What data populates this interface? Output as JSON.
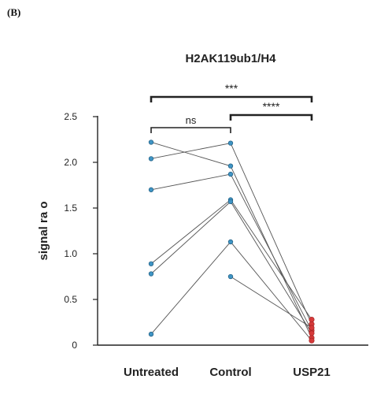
{
  "panel_label": "(B)",
  "chart_data": {
    "type": "scatter",
    "title": "H2AK119ub1/H4",
    "xlabel": "",
    "ylabel": "signal ra  o",
    "categories": [
      "Untreated",
      "Control",
      "USP21"
    ],
    "ylim": [
      0,
      2.5
    ],
    "yticks": [
      0,
      0.5,
      1.0,
      1.5,
      2.0,
      2.5
    ],
    "ytick_labels": [
      "0",
      "0.5",
      "1.0",
      "1.5",
      "2.0",
      "2.5"
    ],
    "grid": false,
    "series": [
      {
        "values": [
          2.22,
          1.96,
          0.08
        ]
      },
      {
        "values": [
          2.04,
          2.21,
          0.23
        ]
      },
      {
        "values": [
          1.7,
          1.87,
          0.16
        ]
      },
      {
        "values": [
          0.89,
          1.59,
          0.28
        ]
      },
      {
        "values": [
          0.78,
          1.57,
          0.13
        ]
      },
      {
        "values": [
          0.12,
          1.13,
          0.05
        ]
      },
      {
        "values": [
          null,
          0.75,
          0.19
        ]
      }
    ],
    "annotations": [
      {
        "text": "***",
        "from": 0,
        "to": 2,
        "level": 0
      },
      {
        "text": "****",
        "from": 1,
        "to": 2,
        "level": 1
      },
      {
        "text": "ns",
        "from": 0,
        "to": 1,
        "level": 2
      }
    ],
    "colors": {
      "blue": "#3f94c4",
      "red": "#d63a3a",
      "line": "#555555",
      "axis": "#222222"
    }
  }
}
